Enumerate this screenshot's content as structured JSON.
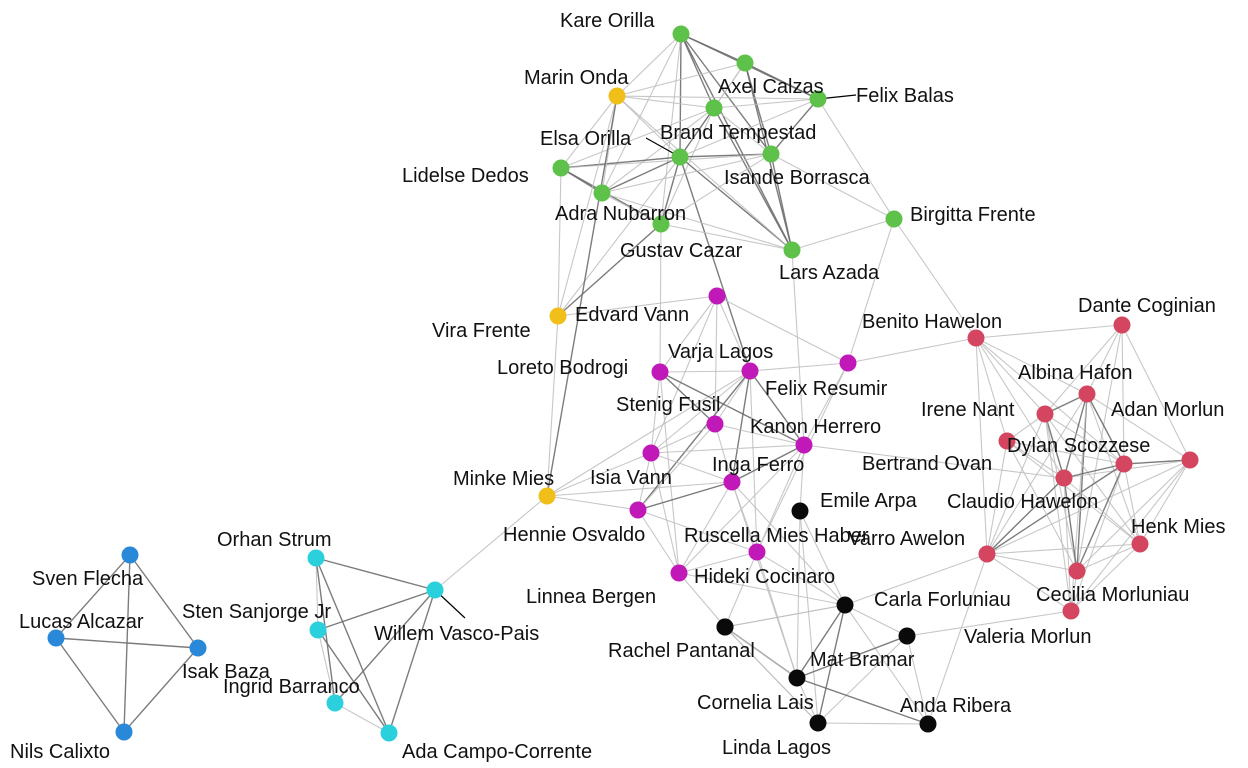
{
  "colors": {
    "green": "#5ec24a",
    "yellow": "#f0bf1a",
    "magenta": "#c118b8",
    "red": "#d4455f",
    "black": "#0a0a0a",
    "cyan": "#2ad1dc",
    "blue": "#2a88d8",
    "edge_light": "#bdbdbd",
    "edge_dark": "#6e6e6e"
  },
  "nodes": [
    {
      "id": "kare-orilla",
      "label": "Kare Orilla",
      "group": "green"
    },
    {
      "id": "axel-calzas",
      "label": "Axel Calzas",
      "group": "green"
    },
    {
      "id": "felix-balas",
      "label": "Felix Balas",
      "group": "green"
    },
    {
      "id": "brand-tempestad",
      "label": "Brand Tempestad",
      "group": "green"
    },
    {
      "id": "elsa-orilla",
      "label": "Elsa Orilla",
      "group": "green"
    },
    {
      "id": "isande-borrasca",
      "label": "Isande Borrasca",
      "group": "green"
    },
    {
      "id": "lidelse-dedos",
      "label": "Lidelse Dedos",
      "group": "green"
    },
    {
      "id": "adra-nubarron",
      "label": "Adra Nubarron",
      "group": "green"
    },
    {
      "id": "gustav-cazar",
      "label": "Gustav Cazar",
      "group": "green"
    },
    {
      "id": "lars-azada",
      "label": "Lars Azada",
      "group": "green"
    },
    {
      "id": "birgitta-frente",
      "label": "Birgitta Frente",
      "group": "green"
    },
    {
      "id": "marin-onda",
      "label": "Marin Onda",
      "group": "yellow"
    },
    {
      "id": "vira-frente",
      "label": "Vira Frente",
      "group": "yellow"
    },
    {
      "id": "minke-mies",
      "label": "Minke Mies",
      "group": "yellow"
    },
    {
      "id": "edvard-vann",
      "label": "Edvard Vann",
      "group": "magenta"
    },
    {
      "id": "loreto-bodrogi",
      "label": "Loreto Bodrogi",
      "group": "magenta"
    },
    {
      "id": "varja-lagos",
      "label": "Varja Lagos",
      "group": "magenta"
    },
    {
      "id": "felix-resumir",
      "label": "Felix Resumir",
      "group": "magenta"
    },
    {
      "id": "stenig-fusil",
      "label": "Stenig Fusil",
      "group": "magenta"
    },
    {
      "id": "kanon-herrero",
      "label": "Kanon Herrero",
      "group": "magenta"
    },
    {
      "id": "isia-vann",
      "label": "Isia Vann",
      "group": "magenta"
    },
    {
      "id": "inga-ferro",
      "label": "Inga Ferro",
      "group": "magenta"
    },
    {
      "id": "hennie-osvaldo",
      "label": "Hennie Osvaldo",
      "group": "magenta"
    },
    {
      "id": "ruscella-mies-haber",
      "label": "Ruscella Mies Haber",
      "group": "magenta"
    },
    {
      "id": "hideki-cocinaro",
      "label": "Hideki Cocinaro",
      "group": "magenta"
    },
    {
      "id": "benito-hawelon",
      "label": "Benito Hawelon",
      "group": "red"
    },
    {
      "id": "dante-coginian",
      "label": "Dante Coginian",
      "group": "red"
    },
    {
      "id": "albina-hafon",
      "label": "Albina Hafon",
      "group": "red"
    },
    {
      "id": "irene-nant",
      "label": "Irene Nant",
      "group": "red"
    },
    {
      "id": "adan-morlun",
      "label": "Adan Morlun",
      "group": "red"
    },
    {
      "id": "dylan-scozzese",
      "label": "Dylan Scozzese",
      "group": "red"
    },
    {
      "id": "bertrand-ovan",
      "label": "Bertrand Ovan",
      "group": "red"
    },
    {
      "id": "claudio-hawelon",
      "label": "Claudio Hawelon",
      "group": "red"
    },
    {
      "id": "henk-mies",
      "label": "Henk Mies",
      "group": "red"
    },
    {
      "id": "varro-awelon",
      "label": "Varro Awelon",
      "group": "red"
    },
    {
      "id": "cecilia-morluniau",
      "label": "Cecilia Morluniau",
      "group": "red"
    },
    {
      "id": "valeria-morlun",
      "label": "Valeria Morlun",
      "group": "red"
    },
    {
      "id": "emile-arpa",
      "label": "Emile Arpa",
      "group": "black"
    },
    {
      "id": "carla-forluniau",
      "label": "Carla Forluniau",
      "group": "black"
    },
    {
      "id": "linnea-bergen",
      "label": "Linnea Bergen",
      "group": "black"
    },
    {
      "id": "rachel-pantanal",
      "label": "Rachel Pantanal",
      "group": "black"
    },
    {
      "id": "mat-bramar",
      "label": "Mat Bramar",
      "group": "black"
    },
    {
      "id": "cornelia-lais",
      "label": "Cornelia Lais",
      "group": "black"
    },
    {
      "id": "anda-ribera",
      "label": "Anda Ribera",
      "group": "black"
    },
    {
      "id": "linda-lagos",
      "label": "Linda Lagos",
      "group": "black"
    },
    {
      "id": "orhan-strum",
      "label": "Orhan Strum",
      "group": "cyan"
    },
    {
      "id": "sten-sanjorge-jr",
      "label": "Sten Sanjorge Jr",
      "group": "cyan"
    },
    {
      "id": "willem-vasco-pais",
      "label": "Willem Vasco-Pais",
      "group": "cyan"
    },
    {
      "id": "ingrid-barranco",
      "label": "Ingrid Barranco",
      "group": "cyan"
    },
    {
      "id": "ada-campo-corrente",
      "label": "Ada Campo-Corrente",
      "group": "cyan"
    },
    {
      "id": "sven-flecha",
      "label": "Sven Flecha",
      "group": "blue"
    },
    {
      "id": "lucas-alcazar",
      "label": "Lucas Alcazar",
      "group": "blue"
    },
    {
      "id": "isak-baza",
      "label": "Isak Baza",
      "group": "blue"
    },
    {
      "id": "nils-calixto",
      "label": "Nils Calixto",
      "group": "blue"
    }
  ],
  "edges": [
    [
      "kare-orilla",
      "axel-calzas",
      1
    ],
    [
      "kare-orilla",
      "felix-balas",
      1
    ],
    [
      "kare-orilla",
      "brand-tempestad",
      1
    ],
    [
      "kare-orilla",
      "elsa-orilla",
      1
    ],
    [
      "kare-orilla",
      "isande-borrasca",
      1
    ],
    [
      "kare-orilla",
      "lars-azada",
      1
    ],
    [
      "kare-orilla",
      "marin-onda",
      0
    ],
    [
      "kare-orilla",
      "adra-nubarron",
      0
    ],
    [
      "kare-orilla",
      "gustav-cazar",
      0
    ],
    [
      "axel-calzas",
      "felix-balas",
      1
    ],
    [
      "axel-calzas",
      "brand-tempestad",
      0
    ],
    [
      "axel-calzas",
      "isande-borrasca",
      1
    ],
    [
      "axel-calzas",
      "lars-azada",
      1
    ],
    [
      "axel-calzas",
      "marin-onda",
      0
    ],
    [
      "axel-calzas",
      "elsa-orilla",
      0
    ],
    [
      "felix-balas",
      "brand-tempestad",
      0
    ],
    [
      "felix-balas",
      "isande-borrasca",
      1
    ],
    [
      "felix-balas",
      "marin-onda",
      0
    ],
    [
      "felix-balas",
      "birgitta-frente",
      0
    ],
    [
      "felix-balas",
      "elsa-orilla",
      0
    ],
    [
      "brand-tempestad",
      "elsa-orilla",
      1
    ],
    [
      "brand-tempestad",
      "isande-borrasca",
      0
    ],
    [
      "brand-tempestad",
      "lars-azada",
      1
    ],
    [
      "brand-tempestad",
      "marin-onda",
      0
    ],
    [
      "brand-tempestad",
      "adra-nubarron",
      0
    ],
    [
      "brand-tempestad",
      "gustav-cazar",
      0
    ],
    [
      "elsa-orilla",
      "isande-borrasca",
      1
    ],
    [
      "elsa-orilla",
      "lidelse-dedos",
      1
    ],
    [
      "elsa-orilla",
      "adra-nubarron",
      1
    ],
    [
      "elsa-orilla",
      "gustav-cazar",
      1
    ],
    [
      "elsa-orilla",
      "lars-azada",
      1
    ],
    [
      "elsa-orilla",
      "marin-onda",
      0
    ],
    [
      "elsa-orilla",
      "vira-frente",
      0
    ],
    [
      "elsa-orilla",
      "varja-lagos",
      1
    ],
    [
      "isande-borrasca",
      "lars-azada",
      1
    ],
    [
      "isande-borrasca",
      "birgitta-frente",
      0
    ],
    [
      "isande-borrasca",
      "lidelse-dedos",
      0
    ],
    [
      "isande-borrasca",
      "adra-nubarron",
      0
    ],
    [
      "isande-borrasca",
      "gustav-cazar",
      0
    ],
    [
      "lidelse-dedos",
      "adra-nubarron",
      1
    ],
    [
      "lidelse-dedos",
      "gustav-cazar",
      1
    ],
    [
      "lidelse-dedos",
      "marin-onda",
      0
    ],
    [
      "lidelse-dedos",
      "vira-frente",
      0
    ],
    [
      "lidelse-dedos",
      "brand-tempestad",
      0
    ],
    [
      "adra-nubarron",
      "gustav-cazar",
      0
    ],
    [
      "adra-nubarron",
      "marin-onda",
      0
    ],
    [
      "adra-nubarron",
      "lars-azada",
      0
    ],
    [
      "gustav-cazar",
      "lars-azada",
      0
    ],
    [
      "gustav-cazar",
      "vira-frente",
      1
    ],
    [
      "gustav-cazar",
      "loreto-bodrogi",
      0
    ],
    [
      "lars-azada",
      "birgitta-frente",
      0
    ],
    [
      "lars-azada",
      "marin-onda",
      0
    ],
    [
      "lars-azada",
      "kanon-herrero",
      0
    ],
    [
      "birgitta-frente",
      "felix-resumir",
      0
    ],
    [
      "birgitta-frente",
      "benito-hawelon",
      0
    ],
    [
      "marin-onda",
      "minke-mies",
      1
    ],
    [
      "marin-onda",
      "vira-frente",
      0
    ],
    [
      "vira-frente",
      "minke-mies",
      0
    ],
    [
      "vira-frente",
      "edvard-vann",
      0
    ],
    [
      "minke-mies",
      "isia-vann",
      0
    ],
    [
      "minke-mies",
      "hennie-osvaldo",
      0
    ],
    [
      "minke-mies",
      "willem-vasco-pais",
      0
    ],
    [
      "minke-mies",
      "inga-ferro",
      0
    ],
    [
      "minke-mies",
      "varja-lagos",
      0
    ],
    [
      "edvard-vann",
      "loreto-bodrogi",
      0
    ],
    [
      "edvard-vann",
      "varja-lagos",
      0
    ],
    [
      "edvard-vann",
      "felix-resumir",
      0
    ],
    [
      "edvard-vann",
      "stenig-fusil",
      0
    ],
    [
      "edvard-vann",
      "isia-vann",
      0
    ],
    [
      "loreto-bodrogi",
      "varja-lagos",
      0
    ],
    [
      "loreto-bodrogi",
      "stenig-fusil",
      1
    ],
    [
      "loreto-bodrogi",
      "kanon-herrero",
      1
    ],
    [
      "loreto-bodrogi",
      "isia-vann",
      0
    ],
    [
      "loreto-bodrogi",
      "hideki-cocinaro",
      0
    ],
    [
      "varja-lagos",
      "felix-resumir",
      0
    ],
    [
      "varja-lagos",
      "stenig-fusil",
      0
    ],
    [
      "varja-lagos",
      "kanon-herrero",
      1
    ],
    [
      "varja-lagos",
      "isia-vann",
      0
    ],
    [
      "varja-lagos",
      "inga-ferro",
      1
    ],
    [
      "varja-lagos",
      "hennie-osvaldo",
      1
    ],
    [
      "varja-lagos",
      "ruscella-mies-haber",
      0
    ],
    [
      "felix-resumir",
      "kanon-herrero",
      0
    ],
    [
      "felix-resumir",
      "benito-hawelon",
      0
    ],
    [
      "felix-resumir",
      "ruscella-mies-haber",
      0
    ],
    [
      "stenig-fusil",
      "isia-vann",
      0
    ],
    [
      "stenig-fusil",
      "inga-ferro",
      0
    ],
    [
      "stenig-fusil",
      "hennie-osvaldo",
      0
    ],
    [
      "stenig-fusil",
      "kanon-herrero",
      0
    ],
    [
      "kanon-herrero",
      "inga-ferro",
      1
    ],
    [
      "kanon-herrero",
      "ruscella-mies-haber",
      0
    ],
    [
      "kanon-herrero",
      "hideki-cocinaro",
      0
    ],
    [
      "kanon-herrero",
      "claudio-hawelon",
      0
    ],
    [
      "kanon-herrero",
      "emile-arpa",
      0
    ],
    [
      "kanon-herrero",
      "isia-vann",
      0
    ],
    [
      "isia-vann",
      "hennie-osvaldo",
      0
    ],
    [
      "isia-vann",
      "hideki-cocinaro",
      0
    ],
    [
      "isia-vann",
      "inga-ferro",
      0
    ],
    [
      "inga-ferro",
      "hennie-osvaldo",
      1
    ],
    [
      "inga-ferro",
      "ruscella-mies-haber",
      0
    ],
    [
      "inga-ferro",
      "hideki-cocinaro",
      0
    ],
    [
      "inga-ferro",
      "carla-forluniau",
      0
    ],
    [
      "inga-ferro",
      "cornelia-lais",
      0
    ],
    [
      "hennie-osvaldo",
      "hideki-cocinaro",
      0
    ],
    [
      "hennie-osvaldo",
      "ruscella-mies-haber",
      0
    ],
    [
      "ruscella-mies-haber",
      "hideki-cocinaro",
      0
    ],
    [
      "ruscella-mies-haber",
      "linnea-bergen",
      0
    ],
    [
      "ruscella-mies-haber",
      "carla-forluniau",
      0
    ],
    [
      "ruscella-mies-haber",
      "cornelia-lais",
      0
    ],
    [
      "hideki-cocinaro",
      "rachel-pantanal",
      0
    ],
    [
      "hideki-cocinaro",
      "carla-forluniau",
      0
    ],
    [
      "emile-arpa",
      "carla-forluniau",
      0
    ],
    [
      "emile-arpa",
      "cornelia-lais",
      0
    ],
    [
      "emile-arpa",
      "linda-lagos",
      0
    ],
    [
      "carla-forluniau",
      "linnea-bergen",
      0
    ],
    [
      "carla-forluniau",
      "mat-bramar",
      0
    ],
    [
      "carla-forluniau",
      "cornelia-lais",
      1
    ],
    [
      "carla-forluniau",
      "linda-lagos",
      1
    ],
    [
      "carla-forluniau",
      "anda-ribera",
      0
    ],
    [
      "carla-forluniau",
      "varro-awelon",
      0
    ],
    [
      "carla-forluniau",
      "rachel-pantanal",
      0
    ],
    [
      "linnea-bergen",
      "rachel-pantanal",
      0
    ],
    [
      "linnea-bergen",
      "cornelia-lais",
      1
    ],
    [
      "linnea-bergen",
      "linda-lagos",
      0
    ],
    [
      "mat-bramar",
      "cornelia-lais",
      1
    ],
    [
      "mat-bramar",
      "anda-ribera",
      0
    ],
    [
      "mat-bramar",
      "linda-lagos",
      0
    ],
    [
      "mat-bramar",
      "valeria-morlun",
      0
    ],
    [
      "rachel-pantanal",
      "cornelia-lais",
      0
    ],
    [
      "rachel-pantanal",
      "linda-lagos",
      0
    ],
    [
      "cornelia-lais",
      "anda-ribera",
      1
    ],
    [
      "cornelia-lais",
      "linda-lagos",
      0
    ],
    [
      "anda-ribera",
      "linda-lagos",
      0
    ],
    [
      "anda-ribera",
      "varro-awelon",
      0
    ],
    [
      "benito-hawelon",
      "dante-coginian",
      0
    ],
    [
      "benito-hawelon",
      "albina-hafon",
      0
    ],
    [
      "benito-hawelon",
      "irene-nant",
      0
    ],
    [
      "benito-hawelon",
      "dylan-scozzese",
      0
    ],
    [
      "benito-hawelon",
      "claudio-hawelon",
      0
    ],
    [
      "benito-hawelon",
      "varro-awelon",
      0
    ],
    [
      "benito-hawelon",
      "bertrand-ovan",
      0
    ],
    [
      "dante-coginian",
      "albina-hafon",
      0
    ],
    [
      "dante-coginian",
      "adan-morlun",
      0
    ],
    [
      "dante-coginian",
      "irene-nant",
      0
    ],
    [
      "dante-coginian",
      "cecilia-morluniau",
      0
    ],
    [
      "dante-coginian",
      "dylan-scozzese",
      0
    ],
    [
      "albina-hafon",
      "irene-nant",
      1
    ],
    [
      "albina-hafon",
      "adan-morlun",
      0
    ],
    [
      "albina-hafon",
      "dylan-scozzese",
      1
    ],
    [
      "albina-hafon",
      "claudio-hawelon",
      1
    ],
    [
      "albina-hafon",
      "henk-mies",
      0
    ],
    [
      "albina-hafon",
      "varro-awelon",
      0
    ],
    [
      "albina-hafon",
      "cecilia-morluniau",
      1
    ],
    [
      "albina-hafon",
      "valeria-morlun",
      0
    ],
    [
      "irene-nant",
      "dylan-scozzese",
      0
    ],
    [
      "irene-nant",
      "bertrand-ovan",
      0
    ],
    [
      "irene-nant",
      "claudio-hawelon",
      1
    ],
    [
      "irene-nant",
      "varro-awelon",
      0
    ],
    [
      "irene-nant",
      "cecilia-morluniau",
      0
    ],
    [
      "irene-nant",
      "valeria-morlun",
      0
    ],
    [
      "irene-nant",
      "henk-mies",
      0
    ],
    [
      "adan-morlun",
      "dylan-scozzese",
      1
    ],
    [
      "adan-morlun",
      "henk-mies",
      0
    ],
    [
      "adan-morlun",
      "cecilia-morluniau",
      0
    ],
    [
      "adan-morlun",
      "claudio-hawelon",
      0
    ],
    [
      "adan-morlun",
      "varro-awelon",
      0
    ],
    [
      "adan-morlun",
      "valeria-morlun",
      0
    ],
    [
      "dylan-scozzese",
      "bertrand-ovan",
      0
    ],
    [
      "dylan-scozzese",
      "claudio-hawelon",
      1
    ],
    [
      "dylan-scozzese",
      "henk-mies",
      0
    ],
    [
      "dylan-scozzese",
      "varro-awelon",
      1
    ],
    [
      "dylan-scozzese",
      "cecilia-morluniau",
      1
    ],
    [
      "dylan-scozzese",
      "valeria-morlun",
      0
    ],
    [
      "bertrand-ovan",
      "claudio-hawelon",
      0
    ],
    [
      "bertrand-ovan",
      "varro-awelon",
      0
    ],
    [
      "bertrand-ovan",
      "cecilia-morluniau",
      0
    ],
    [
      "bertrand-ovan",
      "henk-mies",
      0
    ],
    [
      "claudio-hawelon",
      "henk-mies",
      0
    ],
    [
      "claudio-hawelon",
      "varro-awelon",
      1
    ],
    [
      "claudio-hawelon",
      "cecilia-morluniau",
      1
    ],
    [
      "claudio-hawelon",
      "valeria-morlun",
      0
    ],
    [
      "henk-mies",
      "cecilia-morluniau",
      0
    ],
    [
      "henk-mies",
      "valeria-morlun",
      0
    ],
    [
      "henk-mies",
      "varro-awelon",
      0
    ],
    [
      "varro-awelon",
      "cecilia-morluniau",
      0
    ],
    [
      "varro-awelon",
      "valeria-morlun",
      0
    ],
    [
      "cecilia-morluniau",
      "valeria-morlun",
      0
    ],
    [
      "orhan-strum",
      "sten-sanjorge-jr",
      0
    ],
    [
      "orhan-strum",
      "willem-vasco-pais",
      1
    ],
    [
      "orhan-strum",
      "ingrid-barranco",
      1
    ],
    [
      "orhan-strum",
      "ada-campo-corrente",
      1
    ],
    [
      "sten-sanjorge-jr",
      "willem-vasco-pais",
      1
    ],
    [
      "sten-sanjorge-jr",
      "ingrid-barranco",
      0
    ],
    [
      "sten-sanjorge-jr",
      "ada-campo-corrente",
      1
    ],
    [
      "willem-vasco-pais",
      "ingrid-barranco",
      1
    ],
    [
      "willem-vasco-pais",
      "ada-campo-corrente",
      1
    ],
    [
      "ingrid-barranco",
      "ada-campo-corrente",
      0
    ],
    [
      "sven-flecha",
      "lucas-alcazar",
      1
    ],
    [
      "sven-flecha",
      "isak-baza",
      1
    ],
    [
      "sven-flecha",
      "nils-calixto",
      1
    ],
    [
      "lucas-alcazar",
      "isak-baza",
      1
    ],
    [
      "lucas-alcazar",
      "nils-calixto",
      1
    ],
    [
      "isak-baza",
      "nils-calixto",
      1
    ]
  ]
}
